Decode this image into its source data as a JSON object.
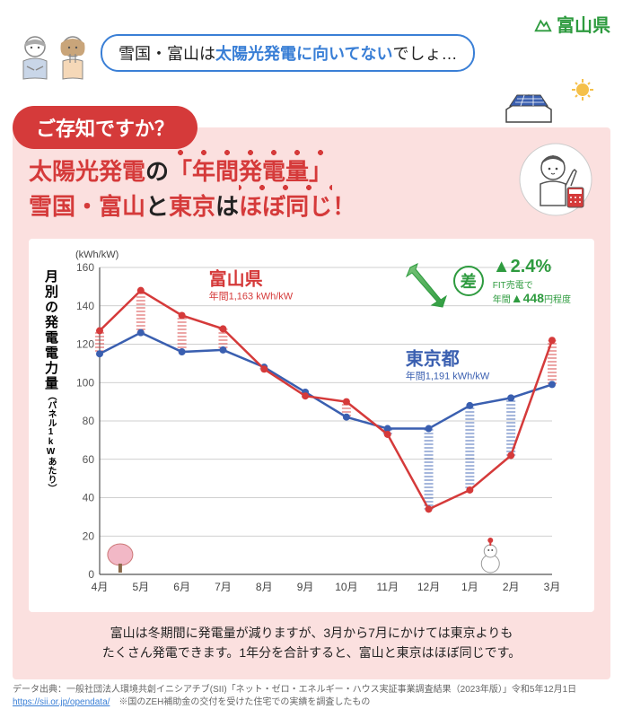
{
  "logo": {
    "text": "富山県"
  },
  "bubble": {
    "pre": "雪国・富山は",
    "blue": "太陽光発電に向いてない",
    "post": "でしょ…"
  },
  "badge": "ご存知ですか？",
  "headline": {
    "l1_a": "太陽光発電",
    "l1_b": "の",
    "l1_c": "「年間発電量」",
    "l2_a": "雪国・富山",
    "l2_b": "と",
    "l2_c": "東京",
    "l2_d": "は",
    "l2_e": "ほぼ同じ",
    "l2_f": "！"
  },
  "chart": {
    "unit": "(kWh/kW)",
    "ylabel": "月別の発電電力量",
    "ylabel_sub": "（パネル1kWあたり）",
    "ylim": [
      0,
      160
    ],
    "yticks": [
      0,
      20,
      40,
      60,
      80,
      100,
      120,
      140,
      160
    ],
    "months": [
      "4月",
      "5月",
      "6月",
      "7月",
      "8月",
      "9月",
      "10月",
      "11月",
      "12月",
      "1月",
      "2月",
      "3月"
    ],
    "toyama": {
      "label": "富山県",
      "sub_pre": "年間",
      "sub_val": "1,163",
      "sub_unit": " kWh/kW",
      "color": "#d53a3a",
      "values": [
        127,
        148,
        135,
        128,
        107,
        93,
        90,
        73,
        34,
        44,
        62,
        122
      ]
    },
    "tokyo": {
      "label": "東京都",
      "sub_pre": "年間",
      "sub_val": "1,191",
      "sub_unit": " kWh/kW",
      "color": "#3a5fb0",
      "values": [
        115,
        126,
        116,
        117,
        108,
        95,
        82,
        76,
        76,
        88,
        92,
        99
      ]
    },
    "grid_color": "#bfbfbf",
    "bg": "#ffffff"
  },
  "diff": {
    "circle": "差",
    "pct": "▲2.4%",
    "sub1": "FIT売電で",
    "sub2_pre": "年間",
    "sub2_val": "▲448",
    "sub2_post": "円程度"
  },
  "caption": "富山は冬期間に発電量が減りますが、3月から7月にかけては東京よりも\nたくさん発電できます。1年分を合計すると、富山と東京はほぼ同じです。",
  "source": {
    "line1": "データ出典：一般社団法人環境共創イニシアチブ(SII)「ネット・ゼロ・エネルギー・ハウス実証事業調査結果（2023年版）」令和5年12月1日",
    "url": "https://sii.or.jp/opendata/",
    "line2": "　※国のZEH補助金の交付を受けた住宅での実績を調査したもの"
  }
}
